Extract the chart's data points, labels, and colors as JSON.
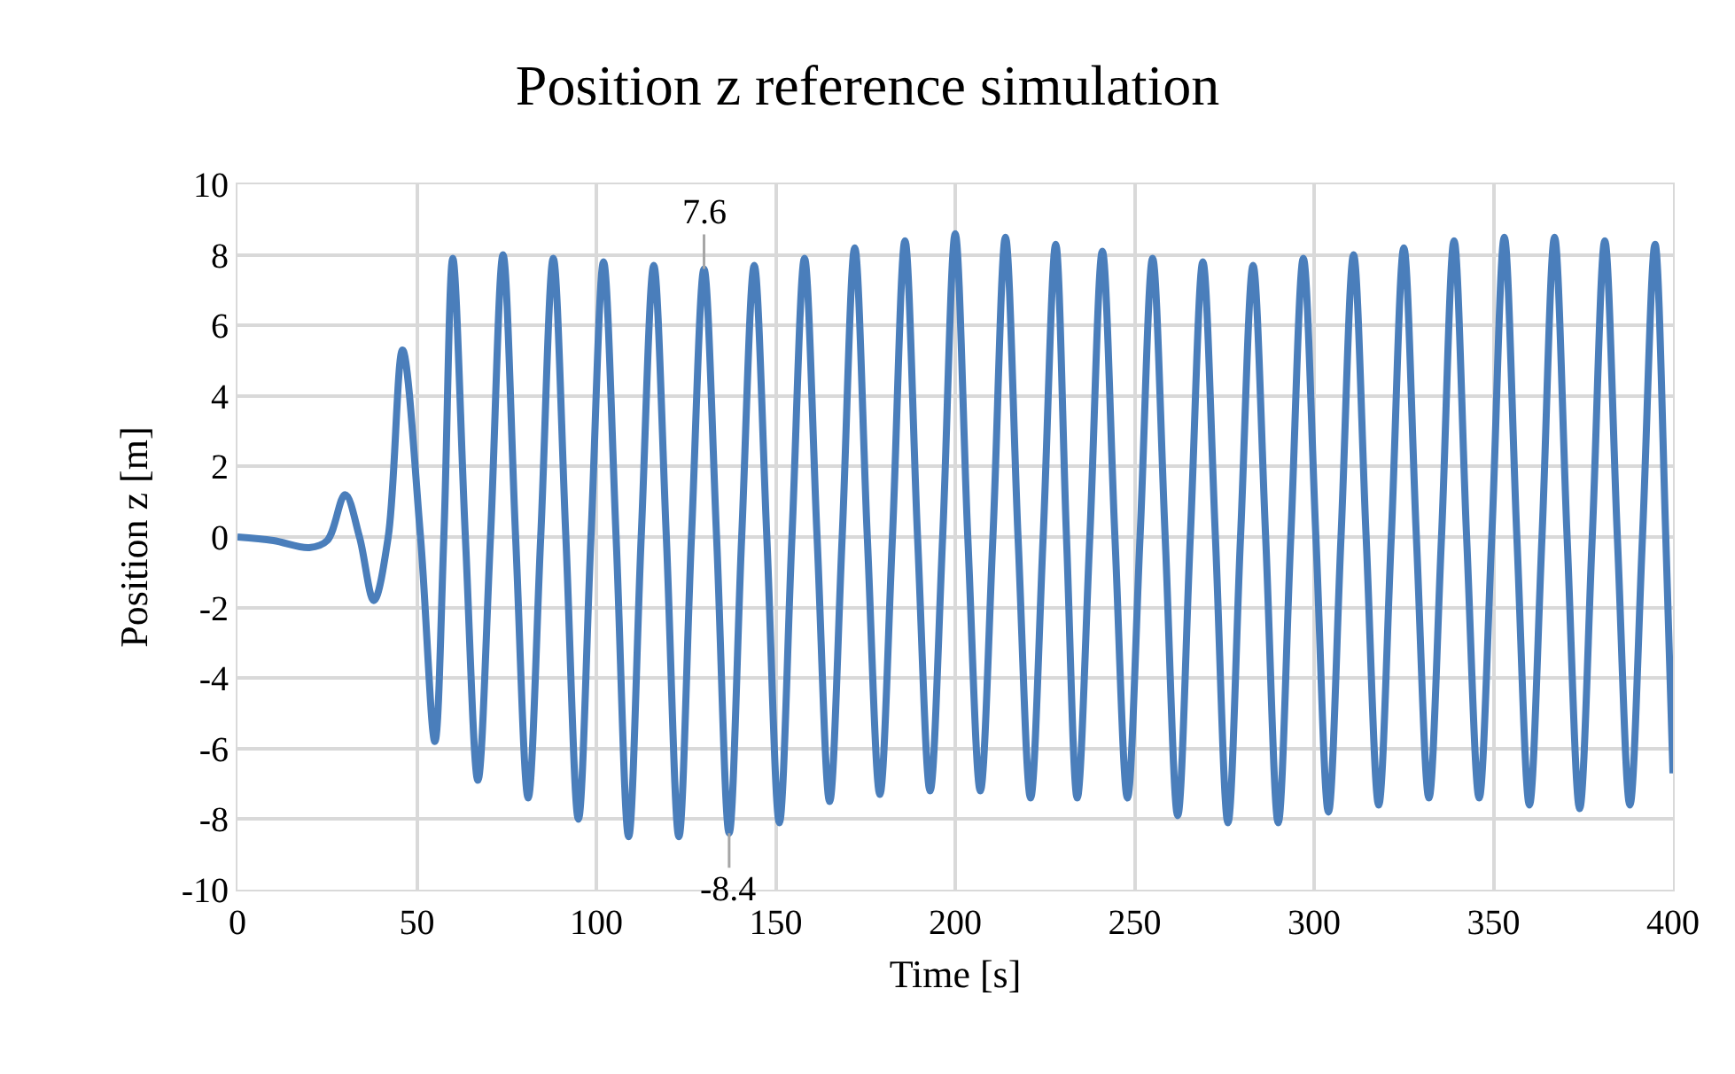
{
  "chart_data": {
    "type": "line",
    "title": "Position z reference simulation",
    "xlabel": "Time [s]",
    "ylabel": "Position z [m]",
    "x": [
      0,
      10,
      20,
      25,
      30,
      34,
      38,
      42,
      46,
      51,
      55,
      57.5,
      60,
      63.5,
      67,
      70.5,
      74,
      77.5,
      81,
      84.5,
      88,
      91.5,
      95,
      98.5,
      102,
      105.5,
      109,
      112.5,
      116,
      119.5,
      123,
      126.5,
      130,
      133.5,
      137,
      140.5,
      144,
      147.5,
      151,
      154.5,
      158,
      161.5,
      165,
      168.5,
      172,
      175.5,
      179,
      182.5,
      186,
      189.5,
      193,
      196.5,
      200,
      203.5,
      207,
      210.5,
      214,
      217.5,
      221,
      224.5,
      228,
      231,
      234,
      237.5,
      241,
      244.5,
      248,
      251.5,
      255,
      258.5,
      262,
      265.5,
      269,
      272.5,
      276,
      279.5,
      283,
      286.5,
      290,
      293.5,
      297,
      300.5,
      304,
      307.5,
      311,
      314.5,
      318,
      321.5,
      325,
      328.5,
      332,
      335.5,
      339,
      342.5,
      346,
      349.5,
      353,
      356.5,
      360,
      363.5,
      367,
      370.5,
      374,
      377.5,
      381,
      384.5,
      388,
      391.5,
      395,
      398,
      400
    ],
    "series": [
      {
        "color": "#4a7ebb",
        "values": [
          0,
          -0.1,
          -0.3,
          -0.1,
          1.2,
          0,
          -1.8,
          0,
          5.3,
          0,
          -5.8,
          0,
          7.9,
          0,
          -6.9,
          0,
          8.0,
          0,
          -7.4,
          0,
          7.9,
          0,
          -8.0,
          0,
          7.8,
          0,
          -8.5,
          0,
          7.7,
          0,
          -8.5,
          0,
          7.6,
          0,
          -8.4,
          0,
          7.7,
          0,
          -8.1,
          0,
          7.9,
          0,
          -7.5,
          0,
          8.2,
          0,
          -7.3,
          0,
          8.4,
          0,
          -7.2,
          0,
          8.6,
          0,
          -7.2,
          0,
          8.5,
          0,
          -7.4,
          0,
          8.3,
          0,
          -7.4,
          0,
          8.1,
          0,
          -7.4,
          0,
          7.9,
          0,
          -7.9,
          0,
          7.8,
          0,
          -8.1,
          0,
          7.7,
          0,
          -8.1,
          0,
          7.9,
          0,
          -7.8,
          0,
          8.0,
          0,
          -7.6,
          0,
          8.2,
          0,
          -7.4,
          0,
          8.4,
          0,
          -7.4,
          0,
          8.5,
          0,
          -7.6,
          0,
          8.5,
          0,
          -7.7,
          0,
          8.4,
          0,
          -7.6,
          0,
          8.3,
          0,
          -6.7
        ]
      }
    ],
    "xlim": [
      0,
      400
    ],
    "xticks": [
      0,
      50,
      100,
      150,
      200,
      250,
      300,
      350,
      400
    ],
    "ylim": [
      -10,
      10
    ],
    "yticks": [
      -10,
      -8,
      -6,
      -4,
      -2,
      0,
      2,
      4,
      6,
      8,
      10
    ],
    "grid": true,
    "line_style": "solid",
    "marker": "none",
    "annotations": [
      {
        "text": "7.6",
        "x": 130,
        "y": 7.6
      },
      {
        "text": "-8.4",
        "x": 137,
        "y": -8.4
      }
    ]
  }
}
